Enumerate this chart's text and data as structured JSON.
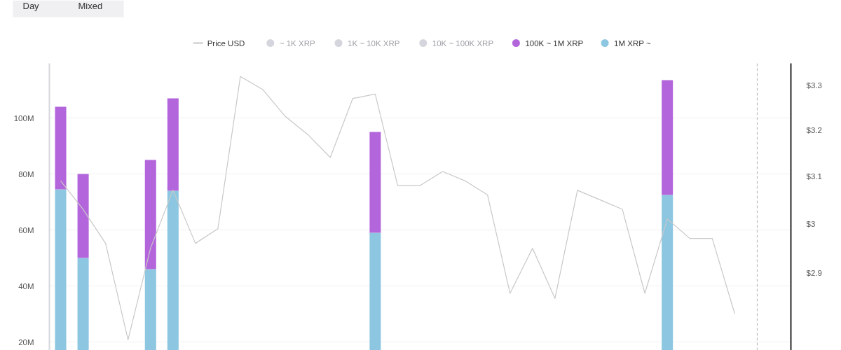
{
  "chart_data": {
    "type": "bar",
    "stacked": true,
    "categories": [
      null,
      null,
      null,
      null,
      null,
      null,
      null,
      null,
      null,
      null,
      null,
      null,
      null,
      null,
      null,
      null,
      null,
      null,
      null,
      null,
      null,
      null,
      null,
      null,
      null,
      null,
      null,
      null,
      null,
      null,
      null,
      null,
      null
    ],
    "series": [
      {
        "name": "Price USD",
        "type": "line",
        "axis": "y2",
        "color": "#c8c8c8",
        "values": [
          3.09,
          3.03,
          2.96,
          2.77,
          2.95,
          3.07,
          2.96,
          2.99,
          3.32,
          3.29,
          3.23,
          3.19,
          3.14,
          3.27,
          3.28,
          3.08,
          3.08,
          3.11,
          3.09,
          3.06,
          2.86,
          2.95,
          2.85,
          3.07,
          3.05,
          3.03,
          2.86,
          3.01,
          2.97,
          2.97,
          2.82,
          null,
          null
        ]
      },
      {
        "name": "1M XRP ~",
        "color": "#8cc6e0",
        "values": [
          74.5,
          50,
          null,
          null,
          46,
          74,
          null,
          null,
          null,
          null,
          null,
          null,
          null,
          null,
          59,
          null,
          null,
          null,
          null,
          null,
          null,
          null,
          null,
          null,
          null,
          null,
          null,
          72.5,
          null,
          null,
          null,
          null,
          null
        ]
      },
      {
        "name": "100K ~ 1M XRP",
        "color": "#b366db",
        "values": [
          29.5,
          30,
          null,
          null,
          39,
          33,
          null,
          null,
          null,
          null,
          null,
          null,
          null,
          null,
          36,
          null,
          null,
          null,
          null,
          null,
          null,
          null,
          null,
          null,
          null,
          null,
          null,
          41,
          null,
          null,
          null,
          null,
          null
        ]
      },
      {
        "name": "10K ~ 100K XRP",
        "color": "#d5d5dd",
        "values": [
          null,
          null,
          null,
          null,
          null,
          null,
          null,
          null,
          null,
          null,
          null,
          null,
          null,
          null,
          null,
          null,
          null,
          null,
          null,
          null,
          null,
          null,
          null,
          null,
          null,
          null,
          null,
          null,
          null,
          null,
          null,
          null,
          null
        ]
      },
      {
        "name": "1K ~ 10K XRP",
        "color": "#d5d5dd",
        "values": [
          null,
          null,
          null,
          null,
          null,
          null,
          null,
          null,
          null,
          null,
          null,
          null,
          null,
          null,
          null,
          null,
          null,
          null,
          null,
          null,
          null,
          null,
          null,
          null,
          null,
          null,
          null,
          null,
          null,
          null,
          null,
          null,
          null
        ]
      },
      {
        "name": "~ 1K XRP",
        "color": "#d5d5dd",
        "values": [
          null,
          null,
          null,
          null,
          null,
          null,
          null,
          null,
          null,
          null,
          null,
          null,
          null,
          null,
          null,
          null,
          null,
          null,
          null,
          null,
          null,
          null,
          null,
          null,
          null,
          null,
          null,
          null,
          null,
          null,
          null,
          null,
          null
        ]
      }
    ],
    "ylim": [
      17,
      119.5
    ],
    "yticks": [
      {
        "value": 20,
        "label": "20M"
      },
      {
        "value": 40,
        "label": "40M"
      },
      {
        "value": 60,
        "label": "60M"
      },
      {
        "value": 80,
        "label": "80M"
      },
      {
        "value": 100,
        "label": "100M"
      }
    ],
    "y2lim": [
      2.75,
      3.35
    ],
    "y2ticks": [
      {
        "value": 2.9,
        "label": "$2.9"
      },
      {
        "value": 3,
        "label": "$3"
      },
      {
        "value": 3.1,
        "label": "$3.1"
      },
      {
        "value": 3.2,
        "label": "$3.2"
      },
      {
        "value": 3.3,
        "label": "$3.3"
      }
    ],
    "log": "y2",
    "grid": "y",
    "legend": "top",
    "annotations": [
      "Day",
      "Mixed"
    ]
  }
}
